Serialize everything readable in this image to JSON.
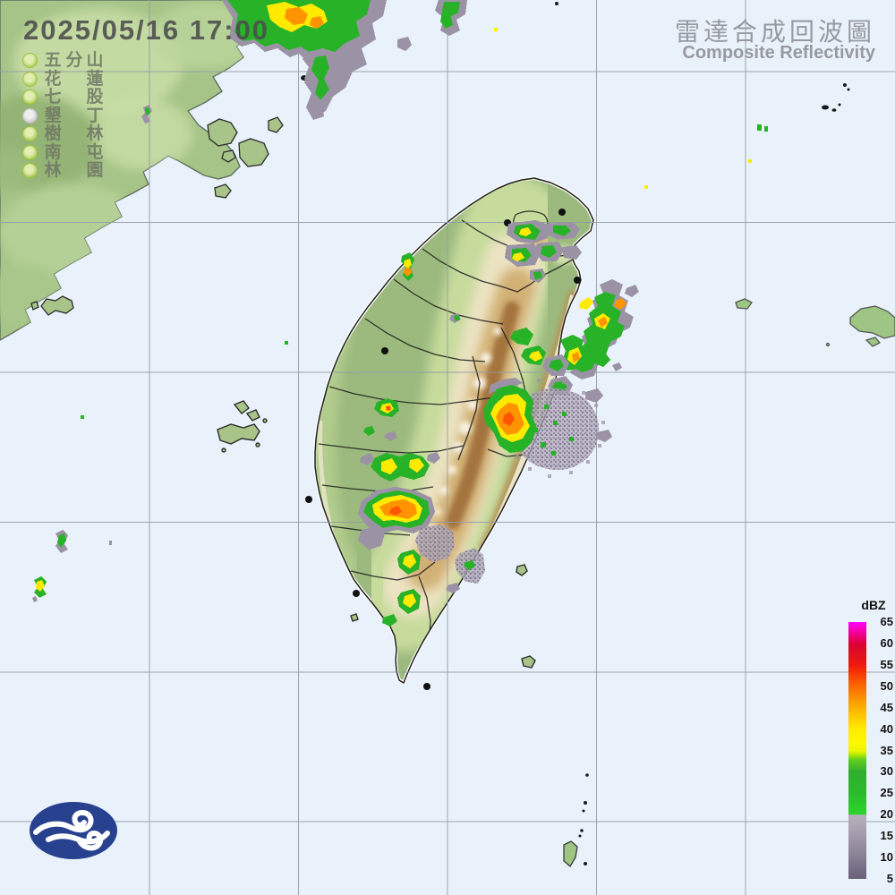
{
  "header": {
    "timestamp": "2025/05/16 17:00",
    "title_zh": "雷達合成回波圖",
    "title_en": "Composite Reflectivity"
  },
  "stations": {
    "active_color_outer": "#9fc33e",
    "active_color_inner": "#e2eeb4",
    "inactive_color_outer": "#bcbcbc",
    "inactive_color_inner": "#efefef",
    "items": [
      {
        "name": "五分山",
        "display": [
          "五",
          "分",
          "山"
        ],
        "status": "active"
      },
      {
        "name": "花蓮",
        "display": [
          "花",
          "",
          "蓮"
        ],
        "status": "active"
      },
      {
        "name": "七股",
        "display": [
          "七",
          "",
          "股"
        ],
        "status": "active"
      },
      {
        "name": "墾丁",
        "display": [
          "墾",
          "",
          "丁"
        ],
        "status": "inactive"
      },
      {
        "name": "樹林",
        "display": [
          "樹",
          "",
          "林"
        ],
        "status": "active"
      },
      {
        "name": "南屯",
        "display": [
          "南",
          "",
          "屯"
        ],
        "status": "active"
      },
      {
        "name": "林園",
        "display": [
          "林",
          "",
          "園"
        ],
        "status": "active"
      }
    ]
  },
  "colorbar": {
    "unit": "dBZ",
    "ticks": [
      65,
      60,
      55,
      50,
      45,
      40,
      35,
      30,
      25,
      20,
      15,
      10,
      5
    ],
    "gradient": [
      [
        "0%",
        "#ff00ff"
      ],
      [
        "4%",
        "#f4009e"
      ],
      [
        "8.33%",
        "#dc0037"
      ],
      [
        "12%",
        "#dc1021"
      ],
      [
        "16.67%",
        "#ee1810"
      ],
      [
        "21%",
        "#f84300"
      ],
      [
        "25%",
        "#fa6a00"
      ],
      [
        "29%",
        "#fb8b00"
      ],
      [
        "33.33%",
        "#feb000"
      ],
      [
        "38%",
        "#ffd200"
      ],
      [
        "41.67%",
        "#ffec00"
      ],
      [
        "47%",
        "#fcf800"
      ],
      [
        "50%",
        "#eef600"
      ],
      [
        "51.5%",
        "#bce800"
      ],
      [
        "53.5%",
        "#62cf1c"
      ],
      [
        "58.33%",
        "#31ad31"
      ],
      [
        "66.67%",
        "#2bbb2b"
      ],
      [
        "74.9%",
        "#2bd52b"
      ],
      [
        "75.1%",
        "#b7b0bc"
      ],
      [
        "83.33%",
        "#a29aab"
      ],
      [
        "91.67%",
        "#867e92"
      ],
      [
        "100%",
        "#69607a"
      ]
    ]
  },
  "icons": {
    "logo": "cwb-cloud-swirl-logo"
  },
  "map": {
    "sea_color": "#e9f1fa",
    "gridline_color": "#949ca6"
  }
}
